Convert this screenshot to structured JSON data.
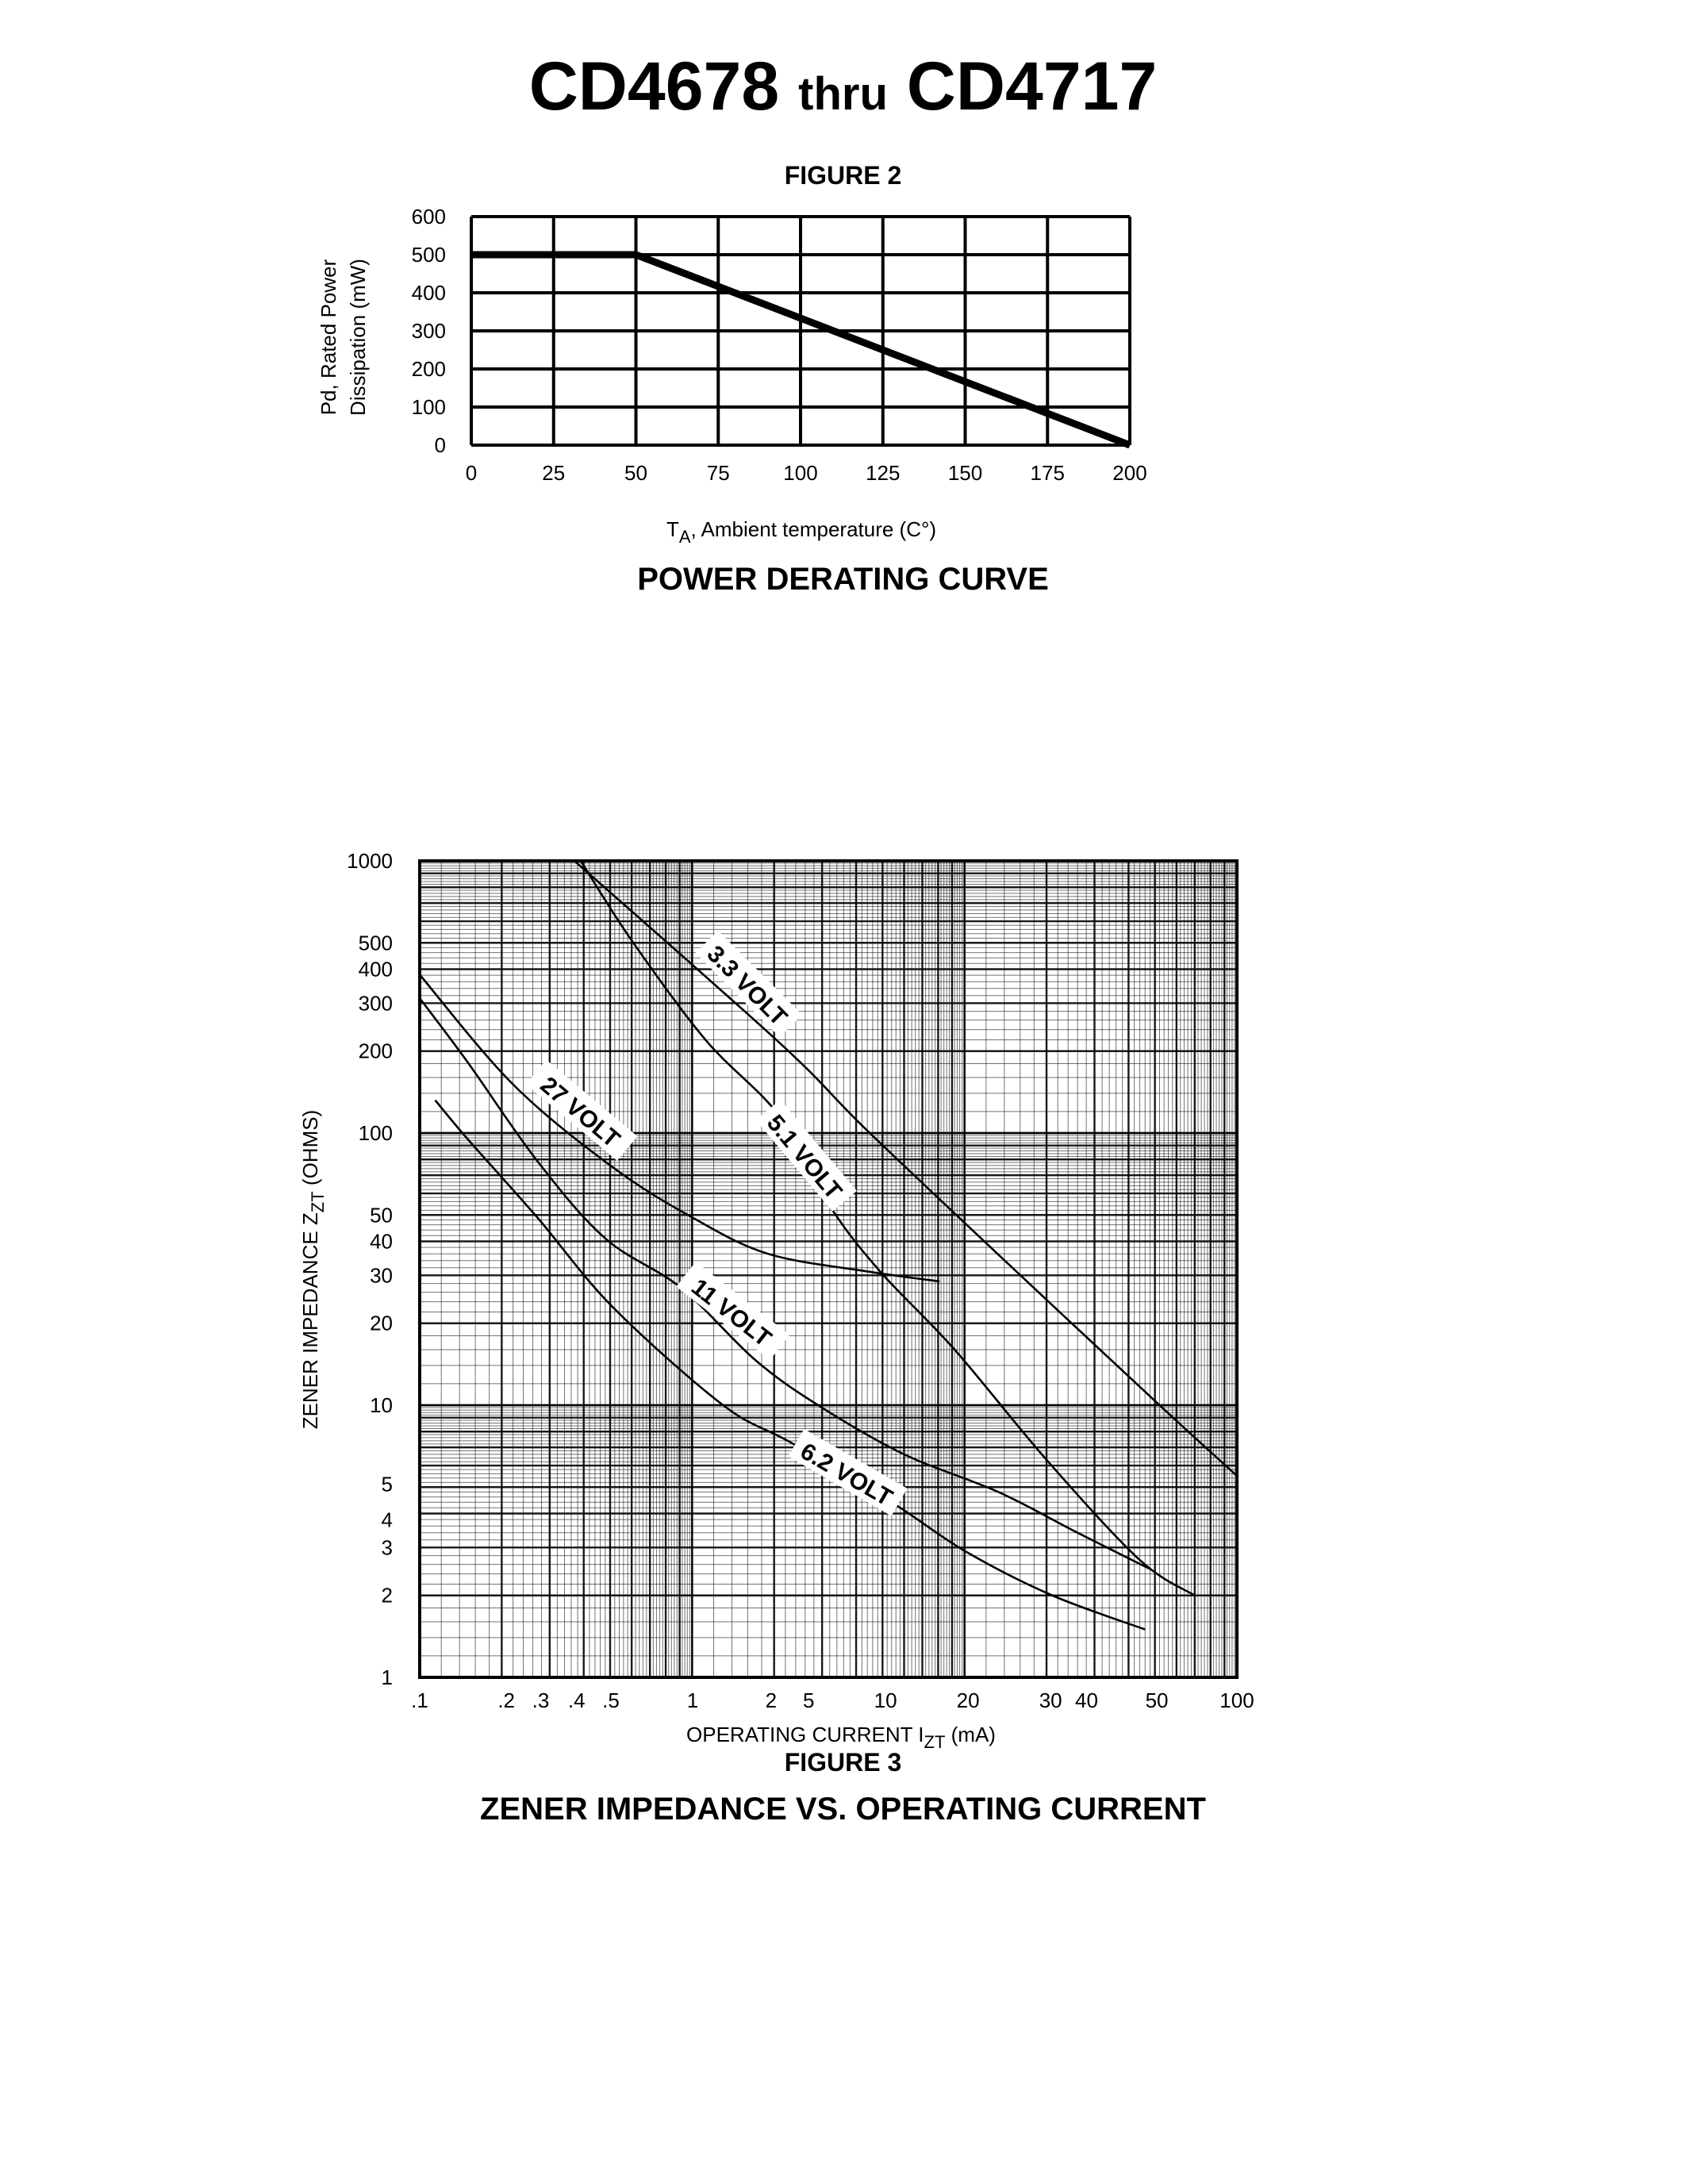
{
  "header": {
    "part_start": "CD4678",
    "thru": "thru",
    "part_end": "CD4717"
  },
  "chart_data": [
    {
      "type": "line",
      "figure_label": "FIGURE 2",
      "title": "POWER DERATING CURVE",
      "xlabel_main": "T",
      "xlabel_sub": "A",
      "xlabel_rest": ", Ambient temperature (C°)",
      "ylabel_line1": "Pd, Rated Power",
      "ylabel_line2": "Dissipation (mW)",
      "xlim": [
        0,
        200
      ],
      "ylim": [
        0,
        600
      ],
      "xticks": [
        0,
        25,
        50,
        75,
        100,
        125,
        150,
        175,
        200
      ],
      "yticks": [
        0,
        100,
        200,
        300,
        400,
        500,
        600
      ],
      "grid": true,
      "series": [
        {
          "x": [
            0,
            50,
            200
          ],
          "y": [
            500,
            500,
            0
          ]
        }
      ]
    },
    {
      "type": "line",
      "figure_label": "FIGURE 3",
      "title": "ZENER IMPEDANCE VS. OPERATING CURRENT",
      "xlabel_main": "OPERATING CURRENT I",
      "xlabel_sub": "ZT",
      "xlabel_rest": " (mA)",
      "ylabel_main": "ZENER IMPEDANCE Z",
      "ylabel_sub": "ZT",
      "ylabel_rest": " (OHMS)",
      "xscale": "log",
      "yscale": "log",
      "xlim": [
        0.1,
        100
      ],
      "ylim": [
        1,
        1000
      ],
      "xtick_labels": [
        ".1",
        ".2",
        ".3",
        ".4",
        ".5",
        "1",
        "2",
        "5",
        "10",
        "20",
        "30",
        "40",
        "50",
        "100"
      ],
      "yticks": [
        "1",
        "2",
        "3",
        "4",
        "5",
        "10",
        "20",
        "30",
        "40",
        "50",
        "100",
        "200",
        "300",
        "400",
        "500",
        "1000"
      ],
      "grid": true,
      "series": [
        {
          "name": "3.3 VOLT",
          "x": [
            0.37,
            2.1,
            4.4,
            15.5,
            52,
            100
          ],
          "y": [
            1000,
            214,
            102,
            31,
            10,
            5.5
          ],
          "label_at": [
            1.6,
            350
          ],
          "label_angle": 45
        },
        {
          "name": "5.1 VOLT",
          "x": [
            0.39,
            0.6,
            1.12,
            2.1,
            3.2,
            4.9,
            9.2,
            20,
            44,
            70
          ],
          "y": [
            1000,
            510,
            220,
            115,
            54,
            31,
            16,
            6.3,
            2.7,
            2.0
          ],
          "label_at": [
            2.6,
            82
          ],
          "label_angle": 50
        },
        {
          "name": "27 VOLT",
          "x": [
            0.1,
            0.22,
            0.51,
            1.0,
            1.9,
            4.4,
            8.1
          ],
          "y": [
            382,
            151,
            75,
            49,
            36,
            31,
            28.5
          ],
          "label_at": [
            0.39,
            120
          ],
          "label_angle": 40
        },
        {
          "name": "11 VOLT",
          "x": [
            0.1,
            0.15,
            0.27,
            0.48,
            0.91,
            1.7,
            2.9,
            6.0,
            13.3,
            26,
            48
          ],
          "y": [
            313,
            182,
            79,
            41,
            27,
            14.7,
            10,
            6.6,
            4.8,
            3.4,
            2.5
          ],
          "label_at": [
            1.4,
            22
          ],
          "label_angle": 38
        },
        {
          "name": "6.2 VOLT",
          "x": [
            0.114,
            0.15,
            0.27,
            0.51,
            1.3,
            2.3,
            5.4,
            10.1,
            21,
            46
          ],
          "y": [
            132,
            95,
            49,
            23,
            10,
            7.3,
            4.4,
            2.9,
            2.0,
            1.5
          ],
          "label_at": [
            3.7,
            5.6
          ],
          "label_angle": 30
        }
      ]
    }
  ]
}
